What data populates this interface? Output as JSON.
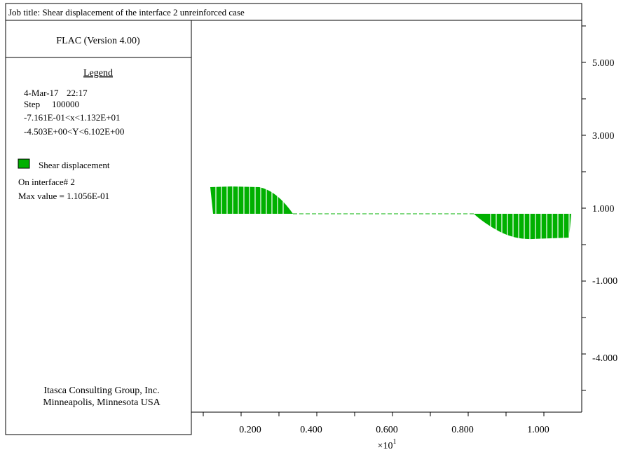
{
  "job_title": "Job title: Shear displacement of the interface 2 unreinforced case",
  "version": "FLAC (Version 4.00)",
  "legend": {
    "heading": "Legend",
    "date": "4-Mar-17",
    "time": "22:17",
    "step_label": "Step",
    "step": "100000",
    "x_range": "-7.161E-01<x<1.132E+01",
    "y_range": "-4.503E+00<Y<6.102E+00",
    "item": "Shear displacement",
    "interface": "On interface# 2",
    "max_value": "Max value = 1.1056E-01"
  },
  "footer": [
    "Itasca Consulting Group, Inc.",
    "Minneapolis, Minnesota USA"
  ],
  "x_axis": {
    "ticks": [
      "0.200",
      "0.400",
      "0.600",
      "0.800",
      "1.000"
    ],
    "multiplier": "×10",
    "exponent": "1"
  },
  "y_axis": {
    "ticks": [
      "5.000",
      "3.000",
      "1.000",
      "-1.000",
      "-4.000"
    ]
  }
}
